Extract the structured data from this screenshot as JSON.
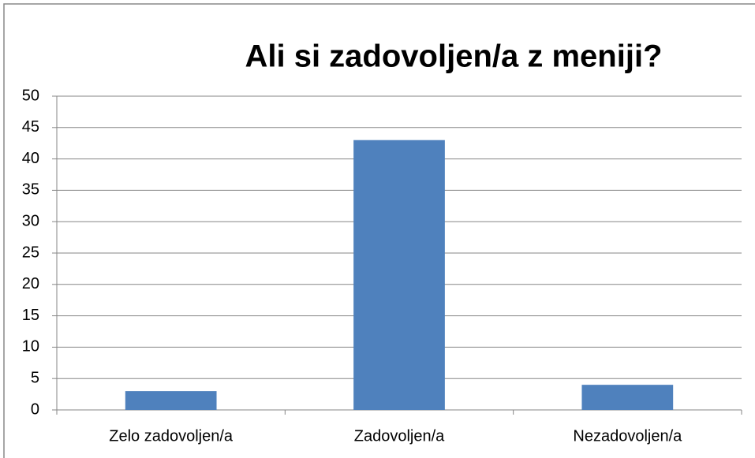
{
  "chart_data": {
    "type": "bar",
    "title": "Ali si zadovoljen/a z meniji?",
    "categories": [
      "Zelo zadovoljen/a",
      "Zadovoljen/a",
      "Nezadovoljen/a"
    ],
    "values": [
      3,
      43,
      4
    ],
    "color": "#4f81bd",
    "ylim": [
      0,
      50
    ],
    "yticks": [
      0,
      5,
      10,
      15,
      20,
      25,
      30,
      35,
      40,
      45,
      50
    ],
    "grid": true
  }
}
